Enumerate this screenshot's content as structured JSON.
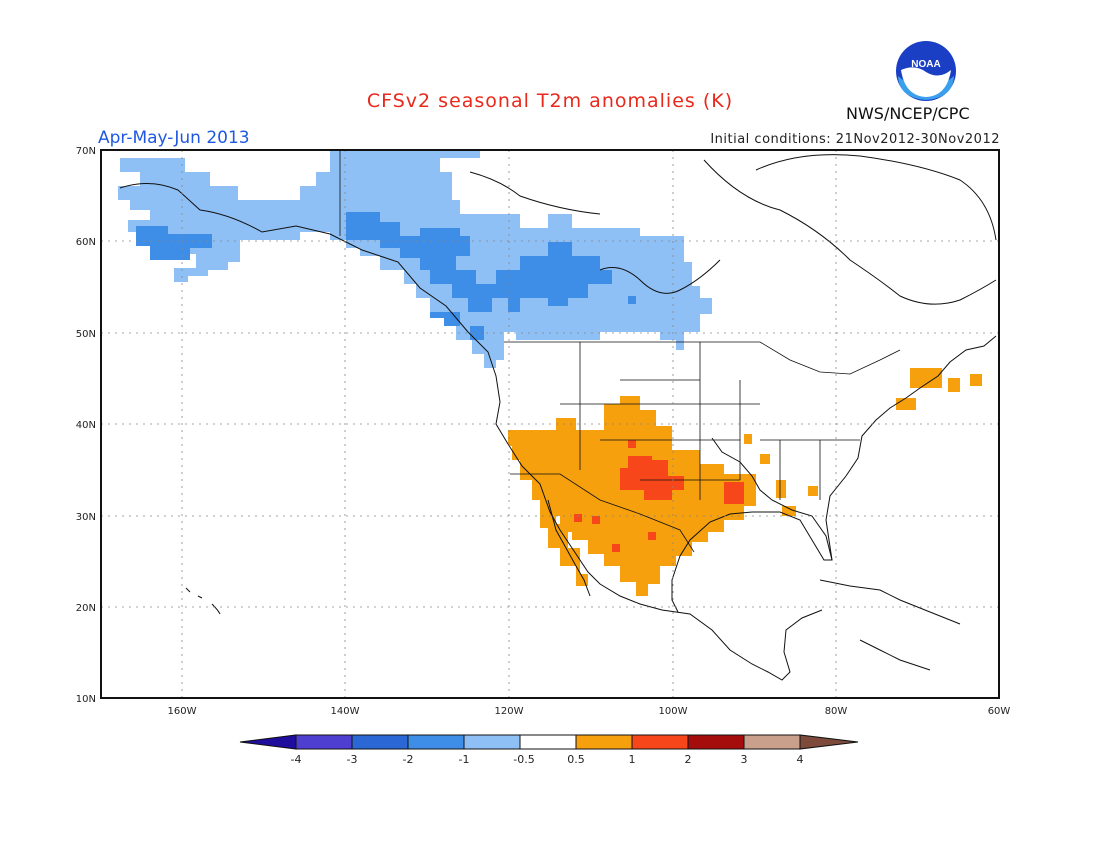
{
  "title": "CFSv2 seasonal T2m anomalies (K)",
  "period": "Apr-May-Jun 2013",
  "initial_conditions": "Initial conditions: 21Nov2012-30Nov2012",
  "agency": "NWS/NCEP/CPC",
  "logo_text": "NOAA",
  "lat_labels": [
    "70N",
    "60N",
    "50N",
    "40N",
    "30N",
    "20N",
    "10N"
  ],
  "lon_labels": [
    "160W",
    "140W",
    "120W",
    "100W",
    "80W",
    "60W"
  ],
  "colorbar": {
    "labels": [
      "-4",
      "-3",
      "-2",
      "-1",
      "-0.5",
      "0.5",
      "1",
      "2",
      "3",
      "4"
    ],
    "colors": [
      "#1f0d9e",
      "#4f3fd0",
      "#2c67d6",
      "#3e8ee8",
      "#8ebff5",
      "#ffffff",
      "#f5a00c",
      "#f6461a",
      "#a50d0d",
      "#c9a08c",
      "#7d4a3c"
    ]
  },
  "map": {
    "lat_range": [
      10,
      70
    ],
    "lon_range": [
      -170,
      -60
    ],
    "colors": {
      "light_blue": "#8ebff5",
      "mid_blue": "#3e8ee8",
      "orange": "#f5a00c",
      "red_orange": "#f6461a"
    }
  }
}
